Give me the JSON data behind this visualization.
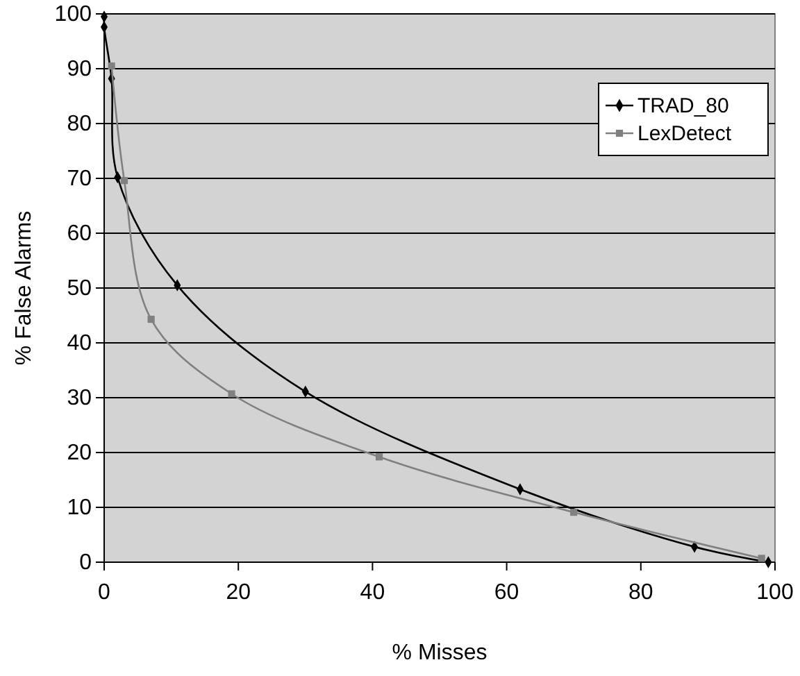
{
  "chart_data": {
    "type": "line",
    "xlabel": "% Misses",
    "ylabel": "% False Alarms",
    "xlim": [
      0,
      100
    ],
    "ylim": [
      0,
      100
    ],
    "xticks": [
      0,
      20,
      40,
      60,
      80,
      100
    ],
    "yticks": [
      0,
      10,
      20,
      30,
      40,
      50,
      60,
      70,
      80,
      90,
      100
    ],
    "grid": "y",
    "legend": "top right",
    "line_style": "solid",
    "series": [
      {
        "name": "TRAD_80",
        "color": "#000000",
        "marker": "diamond",
        "x": [
          0,
          0,
          1.1,
          2,
          10.9,
          30,
          62,
          88,
          99
        ],
        "values": [
          99.5,
          97.6,
          88.2,
          70.2,
          50.5,
          31.1,
          13.3,
          2.8,
          0
        ]
      },
      {
        "name": "LexDetect",
        "color": "#808080",
        "marker": "square",
        "x": [
          1.1,
          3,
          7,
          19,
          41,
          70,
          98
        ],
        "values": [
          90.5,
          69.6,
          44.3,
          30.7,
          19.2,
          9.1,
          0.7
        ]
      }
    ]
  }
}
